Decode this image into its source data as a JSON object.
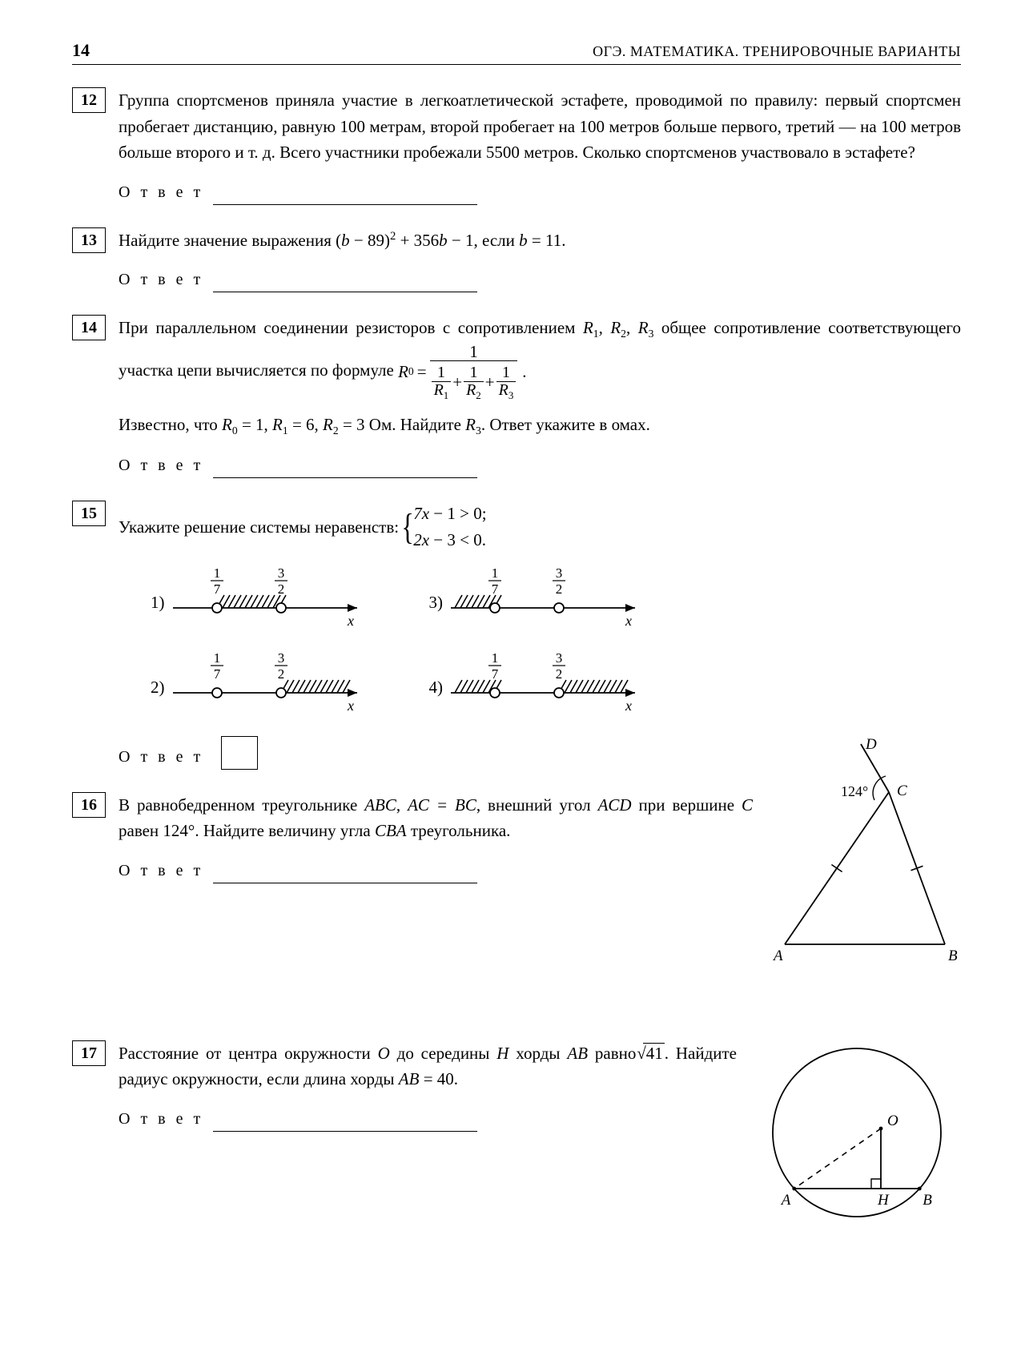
{
  "page_number": "14",
  "header_title": "ОГЭ. МАТЕМАТИКА. ТРЕНИРОВОЧНЫЕ ВАРИАНТЫ",
  "answer_label": "О т в е т",
  "problems": {
    "p12": {
      "num": "12",
      "text": "Группа спортсменов приняла участие в легкоатлетической эстафете, проводимой по правилу: первый спортсмен пробегает дистанцию, равную 100 метрам, второй пробегает на 100 метров больше первого, третий — на 100 метров больше второго и т. д. Всего участники пробежали 5500 метров. Сколько спортсменов участвовало в эстафете?"
    },
    "p13": {
      "num": "13",
      "prefix": "Найдите значение выражения (",
      "expr_b": "b",
      "expr_mid": " − 89)",
      "expr_sq": "2",
      "expr_mid2": " + 356",
      "expr_b2": "b",
      "expr_mid3": " − 1,  если  ",
      "expr_b3": "b",
      "expr_tail": " = 11."
    },
    "p14": {
      "num": "14",
      "line1_a": "При параллельном соединении резисторов с сопротивлением ",
      "R1": "R",
      "s1": "1",
      "R2": "R",
      "s2": "2",
      "R3": "R",
      "s3": "3",
      "line1_b": " общее сопротивление соответствующего участка цепи вычисляется по формуле ",
      "R0": "R",
      "s0": "0",
      "frac_num_1": "1",
      "df1n": "1",
      "df1d": "R",
      "df1s": "1",
      "df2n": "1",
      "df2d": "R",
      "df2s": "2",
      "df3n": "1",
      "df3d": "R",
      "df3s": "3",
      "line2": "Известно, что ",
      "v_R0": "R",
      "vs0": "0",
      "eq0": " = 1,  ",
      "v_R1": "R",
      "vs1": "1",
      "eq1": " = 6,  ",
      "v_R2": "R",
      "vs2": "2",
      "eq2": " = 3 Ом. Найдите ",
      "v_R3": "R",
      "vs3": "3",
      "tail": ". Ответ укажите в омах."
    },
    "p15": {
      "num": "15",
      "prefix": "Укажите решение системы неравенств: ",
      "ineq1": "7x − 1 > 0;",
      "ineq2": "2x − 3 < 0.",
      "labels": {
        "o1": "1)",
        "o2": "2)",
        "o3": "3)",
        "o4": "4)"
      },
      "tick_a_num": "1",
      "tick_a_den": "7",
      "tick_b_num": "3",
      "tick_b_den": "2",
      "axis": "x",
      "diagrams": {
        "o1": {
          "hatch_start": 55,
          "hatch_end": 135,
          "dots": [
            55,
            135
          ]
        },
        "o2": {
          "hatch_start": 135,
          "hatch_end": 215,
          "dots": [
            55,
            135
          ]
        },
        "o3": {
          "hatch_start": -25,
          "hatch_end": 55,
          "dots": [
            55,
            135
          ]
        },
        "o4": {
          "hatch_start_a": -25,
          "hatch_end_a": 55,
          "hatch_start_b": 135,
          "hatch_end_b": 215,
          "dots": [
            55,
            135
          ]
        }
      }
    },
    "p16": {
      "num": "16",
      "text_a": "В равнобедренном треугольнике ",
      "ABC": "ABC",
      "comma1": ", ",
      "eq": "AC = BC",
      "text_b": ", внешний угол ",
      "ACD": "ACD",
      "text_c": " при вершине ",
      "C": "C",
      "text_d": " равен 124°. Найдите величину угла ",
      "CBA": "CBA",
      "text_e": " треугольника.",
      "fig": {
        "angle": "124°",
        "labels": {
          "A": "A",
          "B": "B",
          "C": "C",
          "D": "D"
        }
      }
    },
    "p17": {
      "num": "17",
      "text_a": "Расстояние от центра окружности ",
      "O": "O",
      "text_b": " до середины ",
      "H": "H",
      "text_c": " хорды ",
      "AB": "AB",
      "text_d": " равно ",
      "sqrt_val": "41",
      "text_e": ". Найдите радиус окружности, если длина хорды ",
      "AB2": "AB",
      "eq": " = 40.",
      "fig": {
        "labels": {
          "A": "A",
          "B": "B",
          "O": "O",
          "H": "H"
        }
      }
    }
  },
  "svg_style": {
    "stroke": "#000000",
    "stroke_width": 1.6,
    "fill_open": "#ffffff"
  }
}
